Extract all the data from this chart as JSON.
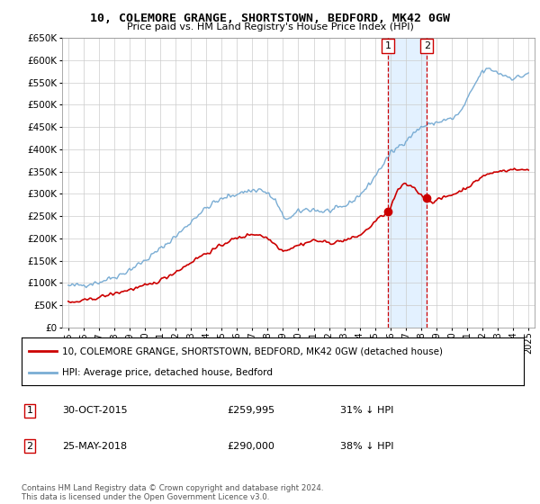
{
  "title": "10, COLEMORE GRANGE, SHORTSTOWN, BEDFORD, MK42 0GW",
  "subtitle": "Price paid vs. HM Land Registry's House Price Index (HPI)",
  "hpi_label": "HPI: Average price, detached house, Bedford",
  "property_label": "10, COLEMORE GRANGE, SHORTSTOWN, BEDFORD, MK42 0GW (detached house)",
  "transaction1_date": "30-OCT-2015",
  "transaction1_price": "£259,995",
  "transaction1_pct": "31% ↓ HPI",
  "transaction1_year": 2015.83,
  "transaction1_value": 259995,
  "transaction2_date": "25-MAY-2018",
  "transaction2_price": "£290,000",
  "transaction2_pct": "38% ↓ HPI",
  "transaction2_year": 2018.38,
  "transaction2_value": 290000,
  "footer": "Contains HM Land Registry data © Crown copyright and database right 2024.\nThis data is licensed under the Open Government Licence v3.0.",
  "ylim": [
    0,
    650000
  ],
  "xlim_start": 1994.6,
  "xlim_end": 2025.4,
  "line_color_property": "#cc0000",
  "line_color_hpi": "#7aadd4",
  "shade_color": "#ddeeff",
  "vline_color": "#cc0000",
  "grid_color": "#cccccc"
}
